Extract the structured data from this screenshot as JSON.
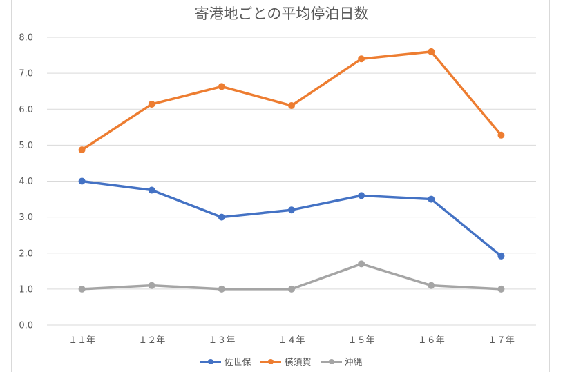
{
  "chart_data": {
    "type": "line",
    "title": "寄港地ごとの平均停泊日数",
    "categories": [
      "１１年",
      "１２年",
      "１３年",
      "１４年",
      "１５年",
      "１６年",
      "１７年"
    ],
    "ylim": [
      0,
      8
    ],
    "yticks": [
      "0.0",
      "1.0",
      "2.0",
      "3.0",
      "4.0",
      "5.0",
      "6.0",
      "7.0",
      "8.0"
    ],
    "grid": true,
    "legend_position": "bottom",
    "series": [
      {
        "name": "佐世保",
        "color": "#4472c4",
        "values": [
          4.0,
          3.75,
          3.0,
          3.2,
          3.6,
          3.5,
          1.92
        ]
      },
      {
        "name": "横須賀",
        "color": "#ed7d31",
        "values": [
          4.87,
          6.14,
          6.63,
          6.1,
          7.4,
          7.6,
          5.28
        ]
      },
      {
        "name": "沖縄",
        "color": "#a5a5a5",
        "values": [
          1.0,
          1.1,
          1.0,
          1.0,
          1.7,
          1.1,
          1.0
        ]
      }
    ]
  }
}
